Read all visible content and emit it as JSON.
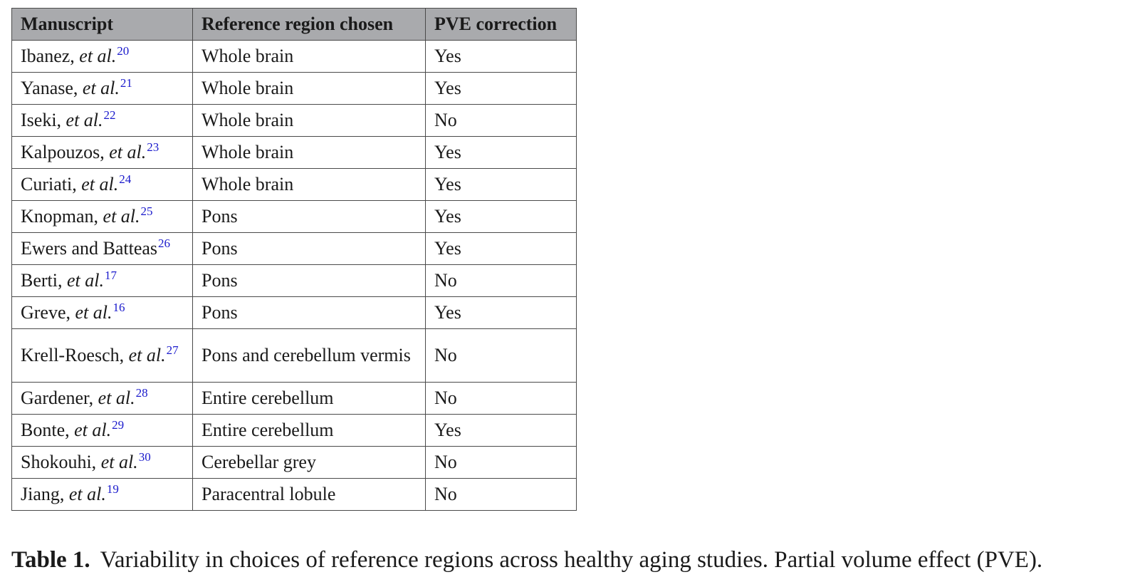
{
  "table": {
    "headers": [
      "Manuscript",
      "Reference region chosen",
      "PVE correction"
    ],
    "rows": [
      {
        "author": "Ibanez, ",
        "etal": "et al.",
        "ref": "20",
        "region": "Whole brain",
        "pve": "Yes"
      },
      {
        "author": "Yanase, ",
        "etal": "et al.",
        "ref": "21",
        "region": "Whole brain",
        "pve": "Yes"
      },
      {
        "author": "Iseki, ",
        "etal": "et al.",
        "ref": "22",
        "region": "Whole brain",
        "pve": "No"
      },
      {
        "author": "Kalpouzos, ",
        "etal": "et al.",
        "ref": "23",
        "region": "Whole brain",
        "pve": "Yes"
      },
      {
        "author": "Curiati, ",
        "etal": "et al.",
        "ref": "24",
        "region": "Whole brain",
        "pve": "Yes"
      },
      {
        "author": "Knopman, ",
        "etal": "et al.",
        "ref": "25",
        "region": "Pons",
        "pve": "Yes"
      },
      {
        "author": "Ewers and Batteas",
        "etal": "",
        "ref": "26",
        "region": "Pons",
        "pve": "Yes"
      },
      {
        "author": "Berti, ",
        "etal": "et al.",
        "ref": "17",
        "region": "Pons",
        "pve": "No"
      },
      {
        "author": "Greve, ",
        "etal": "et al.",
        "ref": "16",
        "region": "Pons",
        "pve": "Yes"
      },
      {
        "author": "Krell-Roesch, ",
        "etal": "et al.",
        "ref": "27",
        "region": "Pons and cerebellum vermis",
        "pve": "No"
      },
      {
        "author": "Gardener, ",
        "etal": "et al.",
        "ref": "28",
        "region": "Entire cerebellum",
        "pve": "No"
      },
      {
        "author": "Bonte, ",
        "etal": "et al.",
        "ref": "29",
        "region": "Entire cerebellum",
        "pve": "Yes"
      },
      {
        "author": "Shokouhi, ",
        "etal": "et al.",
        "ref": "30",
        "region": "Cerebellar grey",
        "pve": "No"
      },
      {
        "author": "Jiang, ",
        "etal": "et al.",
        "ref": "19",
        "region": "Paracentral lobule",
        "pve": "No"
      }
    ]
  },
  "caption": {
    "label": "Table 1.",
    "text": "Variability in choices of reference regions across healthy aging studies. Partial volume effect (PVE)."
  },
  "colors": {
    "header_bg": "#a9aaad",
    "reference_link": "#1a1acc"
  }
}
